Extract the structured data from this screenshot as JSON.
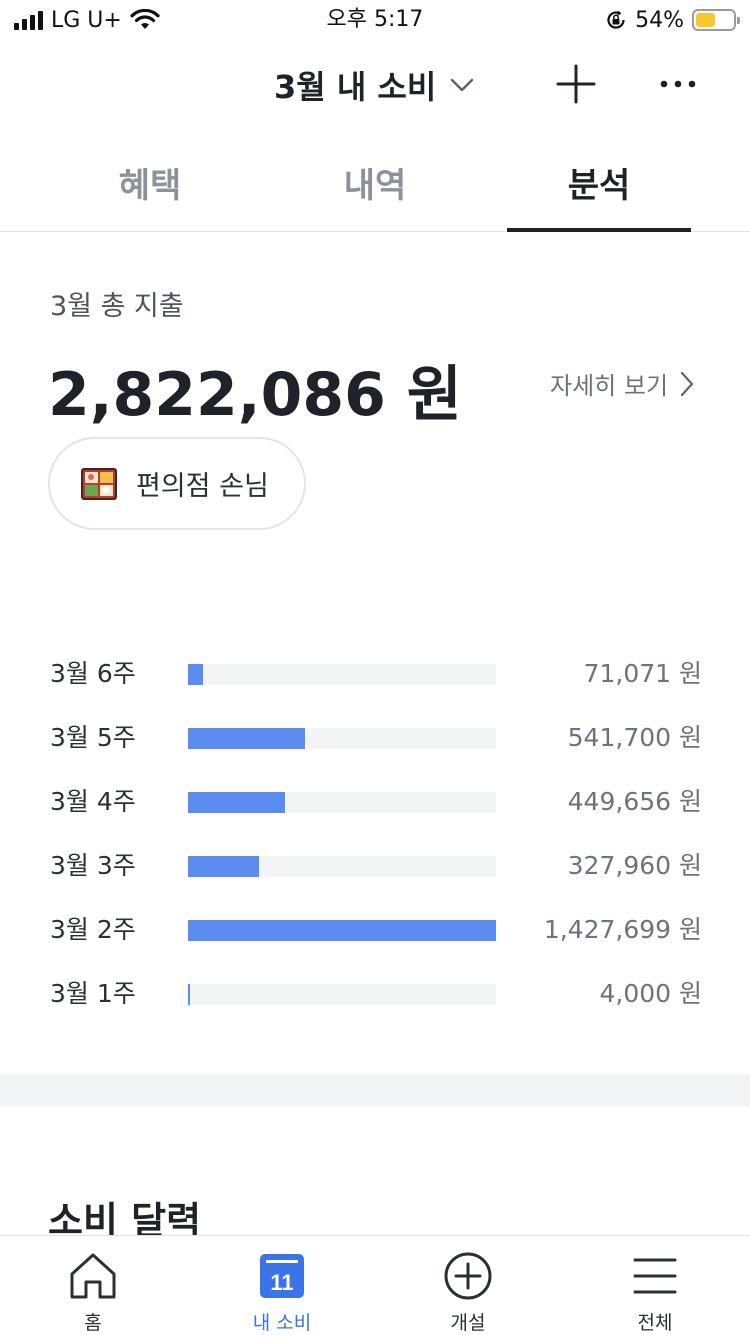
{
  "status_bar": {
    "carrier": "LG U+",
    "time": "오후 5:17",
    "battery_percent": "54%",
    "battery_level": 0.54,
    "icons": [
      "signal-icon",
      "wifi-icon",
      "orientation-lock-icon",
      "battery-icon"
    ]
  },
  "header": {
    "title": "3월 내 소비",
    "icons": [
      "chevron-down-icon",
      "plus-icon",
      "more-icon"
    ]
  },
  "tabs": [
    {
      "label": "혜택",
      "active": false
    },
    {
      "label": "내역",
      "active": false
    },
    {
      "label": "분석",
      "active": true
    }
  ],
  "summary": {
    "label": "3월 총 지출",
    "amount": "2,822,086 원",
    "detail_link": "자세히 보기",
    "persona": {
      "label": "편의점 손님",
      "icon": "bento-box-icon"
    }
  },
  "weekly": {
    "max_value": 1427699,
    "rows": [
      {
        "label": "3월 6주",
        "value": 71071,
        "value_text": "71,071 원"
      },
      {
        "label": "3월 5주",
        "value": 541700,
        "value_text": "541,700 원"
      },
      {
        "label": "3월 4주",
        "value": 449656,
        "value_text": "449,656 원"
      },
      {
        "label": "3월 3주",
        "value": 327960,
        "value_text": "327,960 원"
      },
      {
        "label": "3월 2주",
        "value": 1427699,
        "value_text": "1,427,699 원"
      },
      {
        "label": "3월 1주",
        "value": 4000,
        "value_text": "4,000 원"
      }
    ]
  },
  "calendar_section": {
    "title": "소비 달력"
  },
  "bottom_nav": {
    "items": [
      {
        "label": "홈",
        "icon": "home-icon",
        "active": false
      },
      {
        "label": "내 소비",
        "icon": "calendar-icon",
        "active": true,
        "icon_text": "11"
      },
      {
        "label": "개설",
        "icon": "plus-circle-icon",
        "active": false
      },
      {
        "label": "전체",
        "icon": "menu-icon",
        "active": false
      }
    ]
  },
  "colors": {
    "accent": "#5a8def",
    "nav_active": "#3b73e8",
    "text_primary": "#1f2329",
    "text_secondary": "#6b7280",
    "track": "#f2f4f6"
  }
}
